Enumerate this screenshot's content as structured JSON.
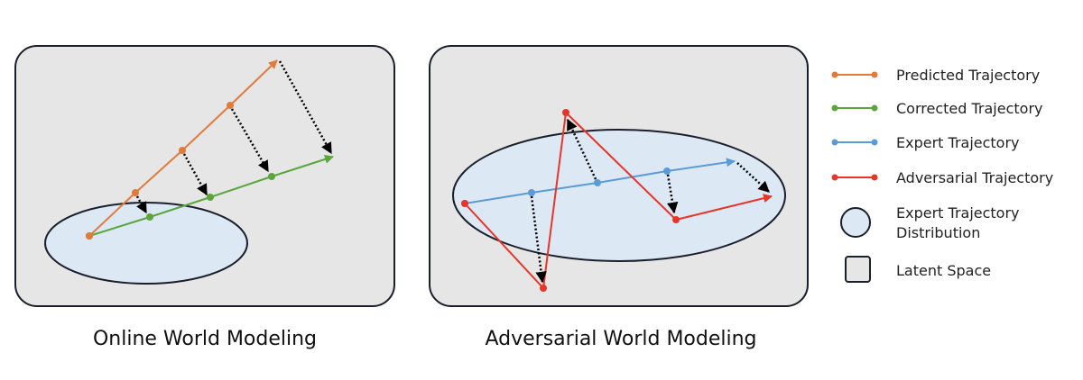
{
  "panels": [
    {
      "title": "Online World Modeling"
    },
    {
      "title": "Adversarial World Modeling"
    }
  ],
  "legend": {
    "items": [
      {
        "label": "Predicted Trajectory",
        "color": "#e07b3c",
        "shape": "line"
      },
      {
        "label": "Corrected Trajectory",
        "color": "#5aa63c",
        "shape": "line"
      },
      {
        "label": "Expert Trajectory",
        "color": "#5b9bd5",
        "shape": "line"
      },
      {
        "label": "Adversarial Trajectory",
        "color": "#e8352a",
        "shape": "line"
      },
      {
        "label_line1": "Expert Trajectory",
        "label_line2": "Distribution",
        "color": "#dde8f5",
        "shape": "circle"
      },
      {
        "label": "Latent Space",
        "color": "#e6e6e6",
        "shape": "square"
      }
    ]
  },
  "colors": {
    "latent_space": "#e6e6e6",
    "distribution": "#dde8f5",
    "outline": "#1a1f2b",
    "correction_arrow": "#000000"
  }
}
